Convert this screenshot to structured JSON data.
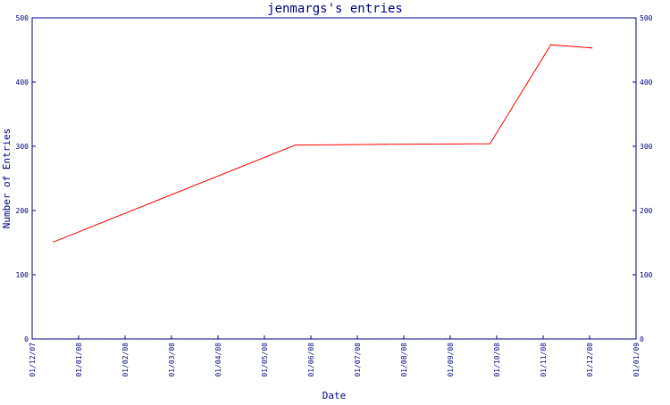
{
  "chart_data": {
    "type": "line",
    "title": "jenmargs's entries",
    "xlabel": "Date",
    "ylabel": "Number of Entries",
    "x_tick_labels": [
      "01/12/07",
      "01/01/08",
      "01/02/08",
      "01/03/08",
      "01/04/08",
      "01/05/08",
      "01/06/08",
      "01/07/08",
      "01/08/08",
      "01/09/08",
      "01/10/08",
      "01/11/08",
      "01/12/08",
      "01/01/09"
    ],
    "xlim": [
      "2007-12-01",
      "2009-01-01"
    ],
    "y_ticks": [
      0,
      100,
      200,
      300,
      400,
      500
    ],
    "ylim": [
      0,
      500
    ],
    "right_axis_mirrored": true,
    "grid": false,
    "series": [
      {
        "color": "#ff0000",
        "points": [
          {
            "x": "2007-12-15",
            "y": 151
          },
          {
            "x": "2008-05-22",
            "y": 302
          },
          {
            "x": "2008-07-20",
            "y": 303
          },
          {
            "x": "2008-09-27",
            "y": 304
          },
          {
            "x": "2008-11-06",
            "y": 458
          },
          {
            "x": "2008-12-03",
            "y": 453
          }
        ]
      }
    ],
    "colors": {
      "axis": "#000080",
      "line": "#ff0000",
      "background": "#ffffff"
    }
  }
}
